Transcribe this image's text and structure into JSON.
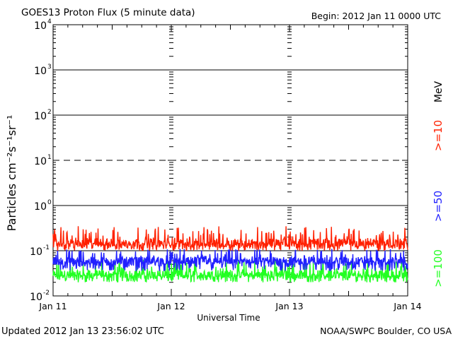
{
  "header": {
    "title": "GOES13 Proton Flux (5 minute data)",
    "begin": "Begin: 2012 Jan 11 0000 UTC"
  },
  "footer": {
    "updated": "Updated 2012 Jan 13 23:56:02 UTC",
    "source": "NOAA/SWPC Boulder, CO USA"
  },
  "chart_data": {
    "type": "line",
    "title": "GOES13 Proton Flux (5 minute data)",
    "xlabel": "Universal Time",
    "ylabel": "Particles cm⁻²s⁻¹sr⁻¹",
    "yscale": "log",
    "ylim": [
      0.01,
      10000
    ],
    "xlim": [
      "2012-01-11 00:00",
      "2012-01-14 00:00"
    ],
    "x_ticks": [
      "Jan 11",
      "Jan 12",
      "Jan 13",
      "Jan 14"
    ],
    "y_ticks": [
      {
        "base": "10",
        "exp": "4"
      },
      {
        "base": "10",
        "exp": "3"
      },
      {
        "base": "10",
        "exp": "2"
      },
      {
        "base": "10",
        "exp": "1"
      },
      {
        "base": "10",
        "exp": "0"
      },
      {
        "base": "10",
        "exp": "-1"
      },
      {
        "base": "10",
        "exp": "-2"
      }
    ],
    "right_label_unit": "MeV",
    "reference_lines": [
      {
        "value": 1000,
        "style": "solid"
      },
      {
        "value": 100,
        "style": "solid"
      },
      {
        "value": 10,
        "style": "dashed"
      },
      {
        "value": 1,
        "style": "solid"
      },
      {
        "value": 0.1,
        "style": "solid"
      }
    ],
    "series": [
      {
        "name": ">=10",
        "color": "#ff2000",
        "x": [
          "Jan 11",
          "Jan 11 12:00",
          "Jan 12",
          "Jan 12 12:00",
          "Jan 13",
          "Jan 13 12:00",
          "Jan 14"
        ],
        "values": [
          0.15,
          0.15,
          0.15,
          0.15,
          0.15,
          0.15,
          0.15
        ],
        "range": [
          0.1,
          0.35
        ]
      },
      {
        "name": ">=50",
        "color": "#2020ff",
        "x": [
          "Jan 11",
          "Jan 11 12:00",
          "Jan 12",
          "Jan 12 12:00",
          "Jan 13",
          "Jan 13 12:00",
          "Jan 14"
        ],
        "values": [
          0.06,
          0.06,
          0.06,
          0.06,
          0.06,
          0.06,
          0.06
        ],
        "range": [
          0.035,
          0.11
        ]
      },
      {
        "name": ">=100",
        "color": "#22ff22",
        "x": [
          "Jan 11",
          "Jan 11 12:00",
          "Jan 12",
          "Jan 12 12:00",
          "Jan 13",
          "Jan 13 12:00",
          "Jan 14"
        ],
        "values": [
          0.03,
          0.03,
          0.03,
          0.03,
          0.03,
          0.03,
          0.03
        ],
        "range": [
          0.02,
          0.065
        ]
      }
    ],
    "grid": false,
    "legend": "right side, vertical"
  }
}
